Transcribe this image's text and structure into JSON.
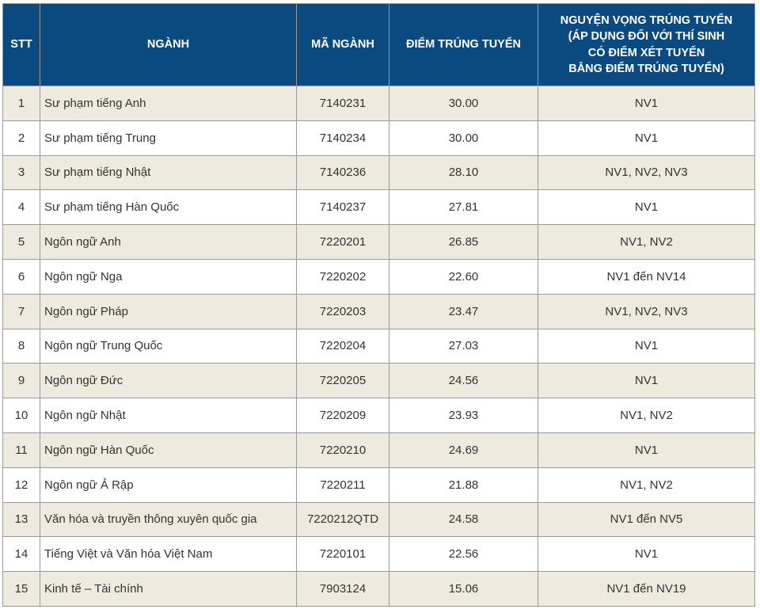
{
  "table": {
    "headers": {
      "stt": "STT",
      "nganh": "NGÀNH",
      "ma_nganh": "MÃ NGÀNH",
      "diem": "ĐIỂM TRÚNG TUYỂN",
      "nguyen_vong_lines": [
        "NGUYỆN VỌNG TRÚNG TUYỂN",
        "(ÁP DỤNG ĐỐI VỚI THÍ SINH",
        "CÓ ĐIỂM XÉT TUYỂN",
        "BẰNG ĐIỂM TRÚNG TUYỂN)"
      ]
    },
    "rows": [
      {
        "stt": "1",
        "nganh": "Sư phạm tiếng Anh",
        "ma": "7140231",
        "diem": "30.00",
        "nv": "NV1"
      },
      {
        "stt": "2",
        "nganh": "Sư phạm tiếng Trung",
        "ma": "7140234",
        "diem": "30.00",
        "nv": "NV1"
      },
      {
        "stt": "3",
        "nganh": "Sư phạm tiếng Nhật",
        "ma": "7140236",
        "diem": "28.10",
        "nv": "NV1, NV2, NV3"
      },
      {
        "stt": "4",
        "nganh": "Sư phạm tiếng Hàn Quốc",
        "ma": "7140237",
        "diem": "27.81",
        "nv": "NV1"
      },
      {
        "stt": "5",
        "nganh": "Ngôn ngữ Anh",
        "ma": "7220201",
        "diem": "26.85",
        "nv": "NV1, NV2"
      },
      {
        "stt": "6",
        "nganh": "Ngôn ngữ Nga",
        "ma": "7220202",
        "diem": "22.60",
        "nv": "NV1 đến NV14"
      },
      {
        "stt": "7",
        "nganh": "Ngôn ngữ Pháp",
        "ma": "7220203",
        "diem": "23.47",
        "nv": "NV1, NV2, NV3"
      },
      {
        "stt": "8",
        "nganh": "Ngôn ngữ Trung Quốc",
        "ma": "7220204",
        "diem": "27.03",
        "nv": "NV1"
      },
      {
        "stt": "9",
        "nganh": "Ngôn ngữ Đức",
        "ma": "7220205",
        "diem": "24.56",
        "nv": "NV1"
      },
      {
        "stt": "10",
        "nganh": "Ngôn ngữ Nhật",
        "ma": "7220209",
        "diem": "23.93",
        "nv": "NV1, NV2"
      },
      {
        "stt": "11",
        "nganh": "Ngôn ngữ Hàn Quốc",
        "ma": "7220210",
        "diem": "24.69",
        "nv": "NV1"
      },
      {
        "stt": "12",
        "nganh": "Ngôn ngữ Ả Rập",
        "ma": "7220211",
        "diem": "21.88",
        "nv": "NV1, NV2"
      },
      {
        "stt": "13",
        "nganh": "Văn hóa và truyền thông xuyên quốc gia",
        "ma": "7220212QTD",
        "diem": "24.58",
        "nv": "NV1 đến NV5"
      },
      {
        "stt": "14",
        "nganh": "Tiếng Việt và Văn hóa Việt Nam",
        "ma": "7220101",
        "diem": "22.56",
        "nv": "NV1"
      },
      {
        "stt": "15",
        "nganh": "Kinh tế – Tài chính",
        "ma": "7903124",
        "diem": "15.06",
        "nv": "NV1 đến NV19"
      }
    ]
  },
  "colors": {
    "header_bg": "#0b4a80",
    "header_text": "#ffffff",
    "row_odd_bg": "#eeeadf",
    "row_even_bg": "#ffffff",
    "border": "#9a9a9a",
    "text": "#333333"
  }
}
